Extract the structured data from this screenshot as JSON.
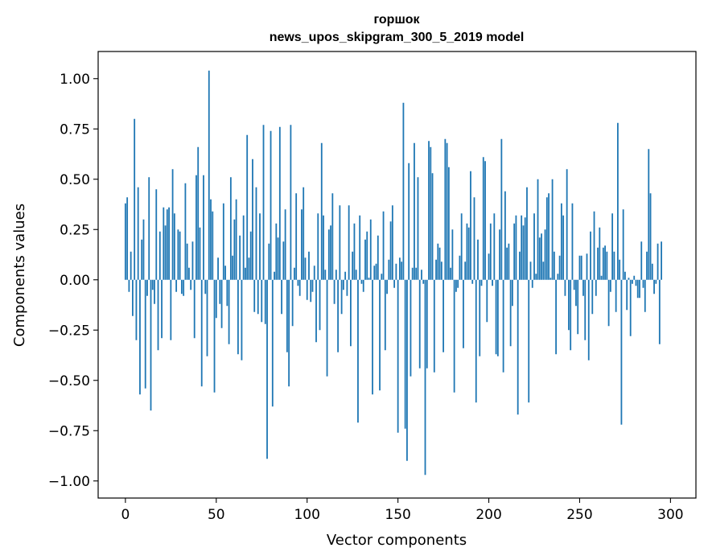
{
  "chart_data": {
    "type": "bar",
    "title": "горшок",
    "subtitle": "news_upos_skipgram_300_5_2019 model",
    "xlabel": "Vector components",
    "ylabel": "Components values",
    "xlim": [
      -15,
      314
    ],
    "ylim": [
      -1.085,
      1.135
    ],
    "xticks": [
      0,
      50,
      100,
      150,
      200,
      250,
      300
    ],
    "xtick_labels": [
      "0",
      "50",
      "100",
      "150",
      "200",
      "250",
      "300"
    ],
    "yticks": [
      -1.0,
      -0.75,
      -0.5,
      -0.25,
      0.0,
      0.25,
      0.5,
      0.75,
      1.0
    ],
    "ytick_labels": [
      "−1.00",
      "−0.75",
      "−0.50",
      "−0.25",
      "0.00",
      "0.25",
      "0.50",
      "0.75",
      "1.00"
    ],
    "bar_color": "#1f77b4",
    "bar_width": 0.8,
    "values": [
      0.38,
      0.41,
      -0.06,
      0.14,
      -0.18,
      0.8,
      -0.3,
      0.46,
      -0.57,
      0.2,
      0.3,
      -0.54,
      -0.08,
      0.51,
      -0.65,
      -0.05,
      -0.12,
      0.45,
      -0.35,
      0.24,
      -0.29,
      0.36,
      0.27,
      0.35,
      0.36,
      -0.3,
      0.55,
      0.33,
      -0.06,
      0.25,
      0.24,
      -0.07,
      -0.08,
      0.48,
      0.18,
      0.06,
      -0.05,
      0.19,
      -0.29,
      0.52,
      0.66,
      0.26,
      -0.53,
      0.52,
      -0.07,
      -0.38,
      1.04,
      0.4,
      0.34,
      -0.56,
      -0.19,
      0.11,
      -0.12,
      -0.24,
      0.38,
      0.07,
      -0.13,
      -0.32,
      0.51,
      0.12,
      0.3,
      0.4,
      -0.37,
      0.22,
      -0.4,
      0.32,
      0.06,
      0.72,
      0.11,
      0.24,
      0.6,
      -0.16,
      0.46,
      -0.17,
      0.33,
      -0.21,
      0.77,
      -0.22,
      -0.89,
      0.18,
      0.74,
      -0.63,
      0.04,
      0.28,
      0.21,
      0.76,
      -0.17,
      0.19,
      0.35,
      -0.36,
      -0.53,
      0.77,
      -0.23,
      0.06,
      0.43,
      -0.03,
      -0.08,
      0.35,
      0.46,
      0.11,
      -0.1,
      0.14,
      -0.11,
      -0.06,
      0.07,
      -0.31,
      0.33,
      -0.25,
      0.68,
      0.32,
      0.05,
      -0.48,
      0.25,
      0.27,
      0.43,
      -0.12,
      0.05,
      -0.36,
      0.37,
      -0.17,
      -0.05,
      0.04,
      -0.08,
      0.37,
      -0.33,
      0.14,
      0.28,
      0.05,
      -0.71,
      0.32,
      -0.02,
      -0.06,
      0.2,
      0.24,
      0.01,
      0.3,
      -0.57,
      0.07,
      0.08,
      0.22,
      -0.55,
      0.03,
      0.34,
      -0.35,
      -0.07,
      0.1,
      0.29,
      0.37,
      -0.04,
      0.08,
      -0.76,
      0.11,
      0.09,
      0.88,
      -0.74,
      -0.9,
      0.58,
      -0.48,
      0.06,
      0.68,
      0.06,
      0.51,
      -0.44,
      0.05,
      -0.02,
      -0.97,
      -0.44,
      0.69,
      0.66,
      0.53,
      -0.46,
      0.1,
      0.18,
      0.16,
      0.09,
      -0.36,
      0.7,
      0.68,
      0.56,
      0.06,
      0.25,
      -0.56,
      -0.06,
      -0.04,
      0.12,
      0.33,
      -0.34,
      0.09,
      0.28,
      0.26,
      0.54,
      -0.02,
      0.41,
      -0.61,
      0.2,
      -0.38,
      -0.03,
      0.61,
      0.59,
      -0.21,
      0.13,
      0.28,
      -0.03,
      0.33,
      -0.37,
      -0.38,
      0.25,
      0.7,
      -0.46,
      0.44,
      0.16,
      0.18,
      -0.33,
      -0.13,
      0.28,
      0.32,
      -0.67,
      0.14,
      0.32,
      0.27,
      0.31,
      0.46,
      -0.61,
      0.09,
      -0.04,
      0.33,
      0.03,
      0.5,
      0.21,
      0.23,
      0.09,
      0.25,
      0.41,
      0.43,
      0.01,
      0.5,
      0.14,
      -0.37,
      0.03,
      0.12,
      0.38,
      0.32,
      -0.08,
      0.55,
      -0.25,
      -0.35,
      0.38,
      -0.05,
      -0.13,
      -0.27,
      0.12,
      0.12,
      -0.08,
      -0.3,
      0.13,
      -0.4,
      0.24,
      -0.17,
      0.34,
      -0.08,
      0.16,
      0.26,
      0.02,
      0.16,
      0.17,
      0.14,
      -0.23,
      -0.06,
      0.33,
      0.14,
      -0.16,
      0.78,
      0.1,
      -0.72,
      0.35,
      0.04,
      -0.15,
      0.01,
      -0.28,
      -0.02,
      0.02,
      -0.03,
      -0.09,
      -0.09,
      0.19,
      -0.04,
      -0.16,
      0.14,
      0.65,
      0.43,
      0.08,
      -0.07,
      -0.02,
      0.18,
      -0.32,
      0.19
    ]
  }
}
